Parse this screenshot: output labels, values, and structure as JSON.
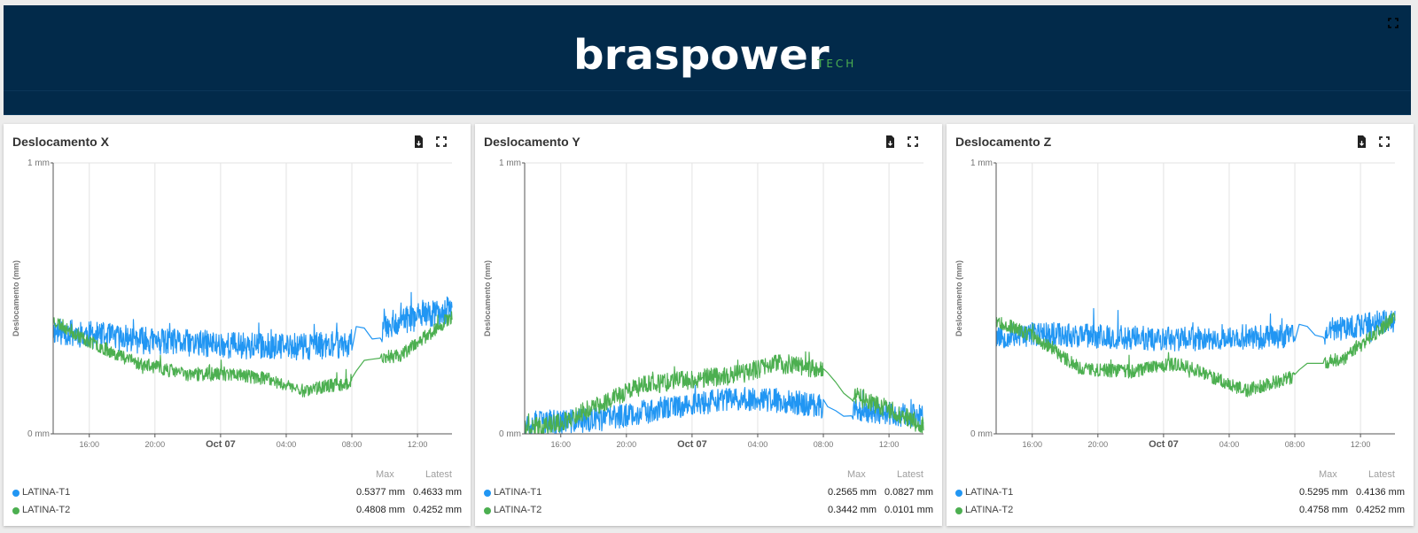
{
  "header": {
    "logo_main": "braspower",
    "logo_sub": "TECH"
  },
  "colors": {
    "header_bg": "#022a4a",
    "t1": "#2196f3",
    "t2": "#4caf50"
  },
  "legend_headers": {
    "max": "Max",
    "latest": "Latest"
  },
  "chart_data": [
    {
      "type": "line",
      "title": "Deslocamento X",
      "ylabel": "Deslocamento (mm)",
      "xlabel": "",
      "yticks": [
        "1 mm",
        "0 mm"
      ],
      "ylim": [
        0,
        1
      ],
      "xticks": [
        "16:00",
        "20:00",
        "Oct 07",
        "04:00",
        "08:00",
        "12:00"
      ],
      "xrange_hours": [
        -10.2,
        14.1
      ],
      "gap_hours": [
        8.0,
        9.8
      ],
      "grid": true,
      "series": [
        {
          "name": "LATINA-T1",
          "color": "#2196f3",
          "max": "0.5377 mm",
          "latest": "0.4633 mm",
          "anchors": [
            [
              -10.2,
              0.38
            ],
            [
              -7,
              0.36
            ],
            [
              -4,
              0.34
            ],
            [
              0,
              0.33
            ],
            [
              4,
              0.32
            ],
            [
              7.9,
              0.33
            ],
            [
              8.4,
              0.42
            ],
            [
              9.6,
              0.32
            ],
            [
              9.9,
              0.4
            ],
            [
              12,
              0.43
            ],
            [
              14.1,
              0.46
            ]
          ],
          "noise": 0.05,
          "seed": 11
        },
        {
          "name": "LATINA-T2",
          "color": "#4caf50",
          "max": "0.4808 mm",
          "latest": "0.4252 mm",
          "anchors": [
            [
              -10.2,
              0.42
            ],
            [
              -8,
              0.34
            ],
            [
              -5,
              0.26
            ],
            [
              -2,
              0.22
            ],
            [
              1,
              0.22
            ],
            [
              3,
              0.2
            ],
            [
              5,
              0.16
            ],
            [
              7.9,
              0.19
            ],
            [
              8.6,
              0.27
            ],
            [
              9.8,
              0.28
            ],
            [
              11,
              0.29
            ],
            [
              12.5,
              0.36
            ],
            [
              14.1,
              0.43
            ]
          ],
          "noise": 0.025,
          "seed": 23
        }
      ]
    },
    {
      "type": "line",
      "title": "Deslocamento Y",
      "ylabel": "Deslocamento (mm)",
      "xlabel": "",
      "yticks": [
        "1 mm",
        "0 mm"
      ],
      "ylim": [
        0,
        1
      ],
      "xticks": [
        "16:00",
        "20:00",
        "Oct 07",
        "04:00",
        "08:00",
        "12:00"
      ],
      "xrange_hours": [
        -10.2,
        14.1
      ],
      "gap_hours": [
        8.0,
        9.8
      ],
      "grid": true,
      "series": [
        {
          "name": "LATINA-T1",
          "color": "#2196f3",
          "max": "0.2565 mm",
          "latest": "0.0827 mm",
          "anchors": [
            [
              -10.2,
              0.04
            ],
            [
              -6,
              0.05
            ],
            [
              -3,
              0.08
            ],
            [
              0,
              0.11
            ],
            [
              3,
              0.13
            ],
            [
              6,
              0.12
            ],
            [
              7.9,
              0.1
            ],
            [
              8.4,
              0.1
            ],
            [
              9.6,
              0.05
            ],
            [
              9.9,
              0.09
            ],
            [
              14.1,
              0.06
            ]
          ],
          "noise": 0.045,
          "seed": 37
        },
        {
          "name": "LATINA-T2",
          "color": "#4caf50",
          "max": "0.3442 mm",
          "latest": "0.0101 mm",
          "anchors": [
            [
              -10.2,
              0.02
            ],
            [
              -8,
              0.04
            ],
            [
              -6,
              0.1
            ],
            [
              -3,
              0.18
            ],
            [
              0,
              0.2
            ],
            [
              3,
              0.22
            ],
            [
              5,
              0.26
            ],
            [
              7.9,
              0.24
            ],
            [
              8.4,
              0.22
            ],
            [
              9.6,
              0.12
            ],
            [
              10,
              0.14
            ],
            [
              12,
              0.09
            ],
            [
              14.1,
              0.03
            ]
          ],
          "noise": 0.035,
          "seed": 41
        }
      ]
    },
    {
      "type": "line",
      "title": "Deslocamento Z",
      "ylabel": "Deslocamento (mm)",
      "xlabel": "",
      "yticks": [
        "1 mm",
        "0 mm"
      ],
      "ylim": [
        0,
        1
      ],
      "xticks": [
        "16:00",
        "20:00",
        "Oct 07",
        "04:00",
        "08:00",
        "12:00"
      ],
      "xrange_hours": [
        -10.2,
        14.1
      ],
      "gap_hours": [
        8.0,
        9.8
      ],
      "grid": true,
      "series": [
        {
          "name": "LATINA-T1",
          "color": "#2196f3",
          "max": "0.5295 mm",
          "latest": "0.4136 mm",
          "anchors": [
            [
              -10.2,
              0.36
            ],
            [
              -7,
              0.37
            ],
            [
              -4,
              0.36
            ],
            [
              0,
              0.35
            ],
            [
              4,
              0.35
            ],
            [
              7.9,
              0.36
            ],
            [
              8.4,
              0.42
            ],
            [
              9.6,
              0.34
            ],
            [
              9.9,
              0.38
            ],
            [
              14.1,
              0.42
            ]
          ],
          "noise": 0.045,
          "seed": 53
        },
        {
          "name": "LATINA-T2",
          "color": "#4caf50",
          "max": "0.4758 mm",
          "latest": "0.4252 mm",
          "anchors": [
            [
              -10.2,
              0.42
            ],
            [
              -8,
              0.36
            ],
            [
              -5,
              0.24
            ],
            [
              -2,
              0.23
            ],
            [
              1,
              0.26
            ],
            [
              3,
              0.21
            ],
            [
              5,
              0.16
            ],
            [
              7.9,
              0.21
            ],
            [
              8.6,
              0.26
            ],
            [
              9.8,
              0.26
            ],
            [
              11,
              0.28
            ],
            [
              12.5,
              0.35
            ],
            [
              14.1,
              0.43
            ]
          ],
          "noise": 0.025,
          "seed": 67
        }
      ]
    }
  ]
}
